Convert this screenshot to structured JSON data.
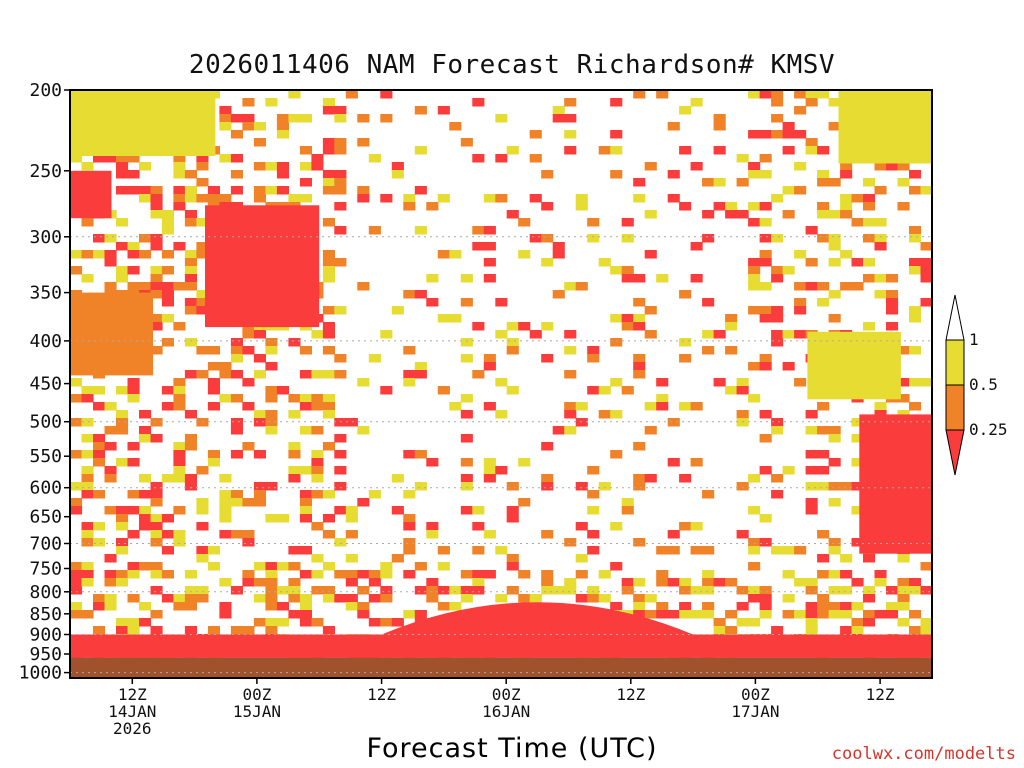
{
  "chart_data": {
    "type": "heatmap",
    "title": "2026011406 NAM Forecast Richardson# KMSV",
    "xlabel": "Forecast Time (UTC)",
    "ylabel": "",
    "y_scale": "log-pressure (inverted)",
    "ylim": [
      1015,
      200
    ],
    "y_ticks": [
      200,
      250,
      300,
      350,
      400,
      450,
      500,
      550,
      600,
      650,
      700,
      750,
      800,
      850,
      900,
      950,
      1000
    ],
    "y_gridlines": [
      300,
      400,
      500,
      600,
      700,
      800,
      900,
      1000
    ],
    "xlim": [
      "2026-01-14 06Z",
      "2026-01-17 17Z"
    ],
    "x_ticks": [
      {
        "time": "2026-01-14 12Z",
        "label": [
          "12Z",
          "14JAN",
          "2026"
        ]
      },
      {
        "time": "2026-01-15 00Z",
        "label": [
          "00Z",
          "15JAN"
        ]
      },
      {
        "time": "2026-01-15 12Z",
        "label": [
          "12Z"
        ]
      },
      {
        "time": "2026-01-16 00Z",
        "label": [
          "00Z",
          "16JAN"
        ]
      },
      {
        "time": "2026-01-16 12Z",
        "label": [
          "12Z"
        ]
      },
      {
        "time": "2026-01-17 00Z",
        "label": [
          "00Z",
          "17JAN"
        ]
      },
      {
        "time": "2026-01-17 12Z",
        "label": [
          "12Z"
        ]
      }
    ],
    "colorbar": {
      "levels": [
        "1",
        "0.5",
        "0.25"
      ],
      "bins": [
        {
          "range": "> 1",
          "color": "#ffffff"
        },
        {
          "range": "0.5 - 1",
          "color": "#e6dc32"
        },
        {
          "range": "0.25 - 0.5",
          "color": "#f08228"
        },
        {
          "range": "< 0.25",
          "color": "#fa3c3c"
        }
      ]
    },
    "surface_color": "#a0522d",
    "surface_pressure_approx_hPa": 960,
    "regions": [
      {
        "class": "lt0.25",
        "time_start": "2026-01-14 06Z",
        "time_end": "2026-01-17 17Z",
        "p_top": 900,
        "p_bottom": 960,
        "note": "continuous low-level band"
      },
      {
        "class": "lt0.25",
        "time_start": "2026-01-15 12Z",
        "time_end": "2026-01-16 18Z",
        "p_top": 805,
        "p_bottom": 900,
        "note": "dome peaking near 16JAN 00Z"
      },
      {
        "class": "lt0.25",
        "time_start": "2026-01-14 06Z",
        "time_end": "2026-01-14 10Z",
        "p_top": 250,
        "p_bottom": 285
      },
      {
        "class": "lt0.25",
        "time_start": "2026-01-14 19Z",
        "time_end": "2026-01-15 06Z",
        "p_top": 275,
        "p_bottom": 385
      },
      {
        "class": "0.25-0.5",
        "time_start": "2026-01-14 06Z",
        "time_end": "2026-01-14 14Z",
        "p_top": 350,
        "p_bottom": 440
      },
      {
        "class": "0.5-1",
        "time_start": "2026-01-14 06Z",
        "time_end": "2026-01-14 20Z",
        "p_top": 200,
        "p_bottom": 240
      },
      {
        "class": "0.5-1",
        "time_start": "2026-01-17 08Z",
        "time_end": "2026-01-17 17Z",
        "p_top": 200,
        "p_bottom": 245
      },
      {
        "class": "lt0.25",
        "time_start": "2026-01-17 10Z",
        "time_end": "2026-01-17 17Z",
        "p_top": 490,
        "p_bottom": 720
      },
      {
        "class": "0.5-1",
        "time_start": "2026-01-17 05Z",
        "time_end": "2026-01-17 14Z",
        "p_top": 390,
        "p_bottom": 470
      }
    ]
  },
  "credit": "coolwx.com/modelts"
}
